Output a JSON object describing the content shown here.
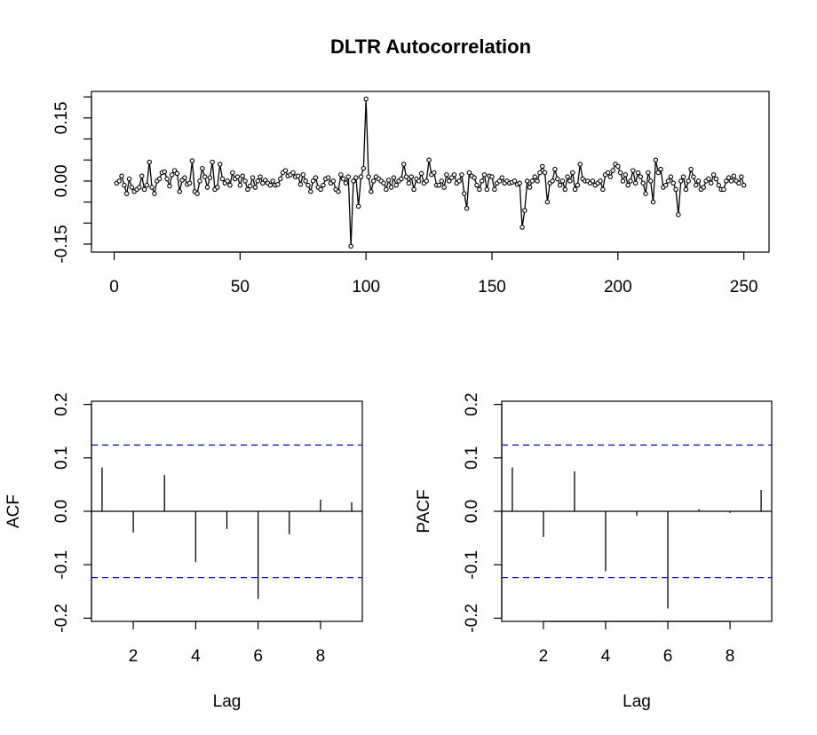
{
  "chart_data": [
    {
      "type": "line",
      "title": "DLTR Autocorrelation",
      "color": "#000000",
      "x": [
        1,
        2,
        3,
        4,
        5,
        6,
        7,
        8,
        9,
        10,
        11,
        12,
        13,
        14,
        15,
        16,
        17,
        18,
        19,
        20,
        21,
        22,
        23,
        24,
        25,
        26,
        27,
        28,
        29,
        30,
        31,
        32,
        33,
        34,
        35,
        36,
        37,
        38,
        39,
        40,
        41,
        42,
        43,
        44,
        45,
        46,
        47,
        48,
        49,
        50,
        51,
        52,
        53,
        54,
        55,
        56,
        57,
        58,
        59,
        60,
        61,
        62,
        63,
        64,
        65,
        66,
        67,
        68,
        69,
        70,
        71,
        72,
        73,
        74,
        75,
        76,
        77,
        78,
        79,
        80,
        81,
        82,
        83,
        84,
        85,
        86,
        87,
        88,
        89,
        90,
        91,
        92,
        93,
        94,
        95,
        96,
        97,
        98,
        99,
        100,
        101,
        102,
        103,
        104,
        105,
        106,
        107,
        108,
        109,
        110,
        111,
        112,
        113,
        114,
        115,
        116,
        117,
        118,
        119,
        120,
        121,
        122,
        123,
        124,
        125,
        126,
        127,
        128,
        129,
        130,
        131,
        132,
        133,
        134,
        135,
        136,
        137,
        138,
        139,
        140,
        141,
        142,
        143,
        144,
        145,
        146,
        147,
        148,
        149,
        150,
        151,
        152,
        153,
        154,
        155,
        156,
        157,
        158,
        159,
        160,
        161,
        162,
        163,
        164,
        165,
        166,
        167,
        168,
        169,
        170,
        171,
        172,
        173,
        174,
        175,
        176,
        177,
        178,
        179,
        180,
        181,
        182,
        183,
        184,
        185,
        186,
        187,
        188,
        189,
        190,
        191,
        192,
        193,
        194,
        195,
        196,
        197,
        198,
        199,
        200,
        201,
        202,
        203,
        204,
        205,
        206,
        207,
        208,
        209,
        210,
        211,
        212,
        213,
        214,
        215,
        216,
        217,
        218,
        219,
        220,
        221,
        222,
        223,
        224,
        225,
        226,
        227,
        228,
        229,
        230,
        231,
        232,
        233,
        234,
        235,
        236,
        237,
        238,
        239,
        240,
        241,
        242,
        243,
        244,
        245,
        246,
        247,
        248,
        249,
        250
      ],
      "values": [
        -0.005,
        0.0,
        0.012,
        -0.01,
        -0.03,
        0.005,
        -0.015,
        -0.025,
        -0.02,
        -0.015,
        0.012,
        -0.02,
        -0.01,
        0.045,
        -0.015,
        -0.03,
        0.0,
        0.005,
        0.02,
        0.022,
        0.005,
        -0.012,
        0.015,
        0.025,
        0.018,
        -0.025,
        0.002,
        0.008,
        -0.008,
        -0.005,
        0.048,
        -0.025,
        -0.03,
        0.0,
        0.03,
        0.01,
        -0.015,
        0.008,
        0.045,
        -0.02,
        -0.015,
        0.04,
        0.005,
        -0.005,
        0.0,
        -0.01,
        0.02,
        0.005,
        0.01,
        -0.01,
        0.012,
        0.0,
        -0.02,
        -0.012,
        0.008,
        -0.015,
        0.0,
        0.01,
        -0.005,
        0.002,
        -0.005,
        -0.01,
        0.0,
        -0.01,
        -0.008,
        0.005,
        0.02,
        0.025,
        0.012,
        0.015,
        0.02,
        0.01,
        0.012,
        -0.008,
        0.015,
        0.0,
        -0.01,
        -0.025,
        0.0,
        0.008,
        -0.015,
        -0.02,
        -0.01,
        0.005,
        0.008,
        -0.005,
        0.0,
        -0.02,
        -0.025,
        0.015,
        0.005,
        -0.005,
        0.01,
        -0.155,
        0.0,
        0.008,
        -0.06,
        0.01,
        0.03,
        0.195,
        0.01,
        -0.025,
        0.0,
        0.01,
        0.005,
        0.0,
        -0.005,
        -0.02,
        0.002,
        -0.015,
        0.008,
        -0.01,
        0.0,
        0.005,
        0.04,
        0.01,
        -0.005,
        0.01,
        -0.02,
        0.005,
        0.0,
        0.018,
        -0.005,
        0.0,
        0.05,
        0.015,
        0.02,
        -0.01,
        -0.01,
        0.0,
        -0.015,
        0.015,
        0.0,
        0.008,
        0.015,
        -0.005,
        0.0,
        0.015,
        -0.03,
        -0.065,
        0.02,
        0.012,
        0.008,
        -0.01,
        -0.02,
        0.0,
        0.015,
        -0.02,
        0.012,
        0.01,
        -0.02,
        -0.005,
        0.0,
        0.008,
        -0.005,
        0.0,
        -0.005,
        -0.003,
        0.0,
        -0.008,
        -0.005,
        -0.11,
        -0.07,
        0.0,
        -0.015,
        0.0,
        0.01,
        0.0,
        0.02,
        0.035,
        0.02,
        -0.05,
        -0.005,
        0.0,
        0.028,
        0.005,
        -0.01,
        0.0,
        -0.02,
        0.01,
        0.0,
        0.02,
        -0.02,
        -0.01,
        0.04,
        0.005,
        0.0,
        0.0,
        -0.005,
        0.0,
        -0.01,
        -0.005,
        0.0,
        -0.02,
        0.015,
        0.02,
        0.01,
        0.025,
        0.04,
        0.035,
        0.02,
        0.0,
        0.015,
        -0.01,
        0.0,
        0.025,
        -0.005,
        0.02,
        0.01,
        -0.005,
        -0.03,
        0.02,
        0.0,
        -0.05,
        0.05,
        0.02,
        0.028,
        -0.015,
        -0.01,
        0.0,
        0.01,
        -0.005,
        -0.02,
        -0.08,
        0.0,
        0.01,
        -0.02,
        0.0,
        0.028,
        0.01,
        -0.01,
        0.0,
        -0.02,
        -0.015,
        0.0,
        0.005,
        -0.005,
        0.015,
        0.005,
        -0.01,
        -0.02,
        -0.02,
        0.0,
        0.008,
        0.0,
        0.012,
        0.0,
        -0.005,
        0.01,
        -0.01
      ],
      "xlim": [
        -9,
        260
      ],
      "xticks": [
        0,
        50,
        100,
        150,
        200,
        250
      ],
      "ylim": [
        -0.169,
        0.213
      ],
      "yticks": [
        {
          "value": -0.15,
          "label": "-0.15"
        },
        {
          "value": 0,
          "label": "0.00"
        },
        {
          "value": 0.15,
          "label": "0.15"
        }
      ],
      "yminor_ticks": [
        -0.1,
        -0.05,
        0.05,
        0.1,
        0.2
      ]
    },
    {
      "type": "acf",
      "ylabel": "ACF",
      "xlabel": "Lag",
      "color": "#000000",
      "x": [
        1,
        2,
        3,
        4,
        5,
        6,
        7,
        8,
        9
      ],
      "values": [
        0.082,
        -0.04,
        0.068,
        -0.095,
        -0.033,
        -0.164,
        -0.043,
        0.022,
        0.017
      ],
      "xlim": [
        0.66,
        9.34
      ],
      "xticks": [
        2,
        4,
        6,
        8
      ],
      "ylim": [
        -0.206,
        0.206
      ],
      "yticks": [
        -0.2,
        -0.1,
        {
          "value": 0,
          "label": "0.0"
        },
        0.1,
        0.2
      ],
      "ci_lines": [
        0.124,
        -0.124
      ],
      "ci_color": "#0000ff"
    },
    {
      "type": "acf",
      "ylabel": "PACF",
      "xlabel": "Lag",
      "color": "#000000",
      "x": [
        1,
        2,
        3,
        4,
        5,
        6,
        7,
        8,
        9
      ],
      "values": [
        0.082,
        -0.048,
        0.075,
        -0.112,
        -0.008,
        -0.182,
        0.004,
        -0.003,
        0.04
      ],
      "xlim": [
        0.66,
        9.34
      ],
      "xticks": [
        2,
        4,
        6,
        8
      ],
      "ylim": [
        -0.206,
        0.206
      ],
      "yticks": [
        -0.2,
        -0.1,
        {
          "value": 0,
          "label": "0.0"
        },
        0.1,
        0.2
      ],
      "ci_lines": [
        0.124,
        -0.124
      ],
      "ci_color": "#0000ff"
    }
  ]
}
